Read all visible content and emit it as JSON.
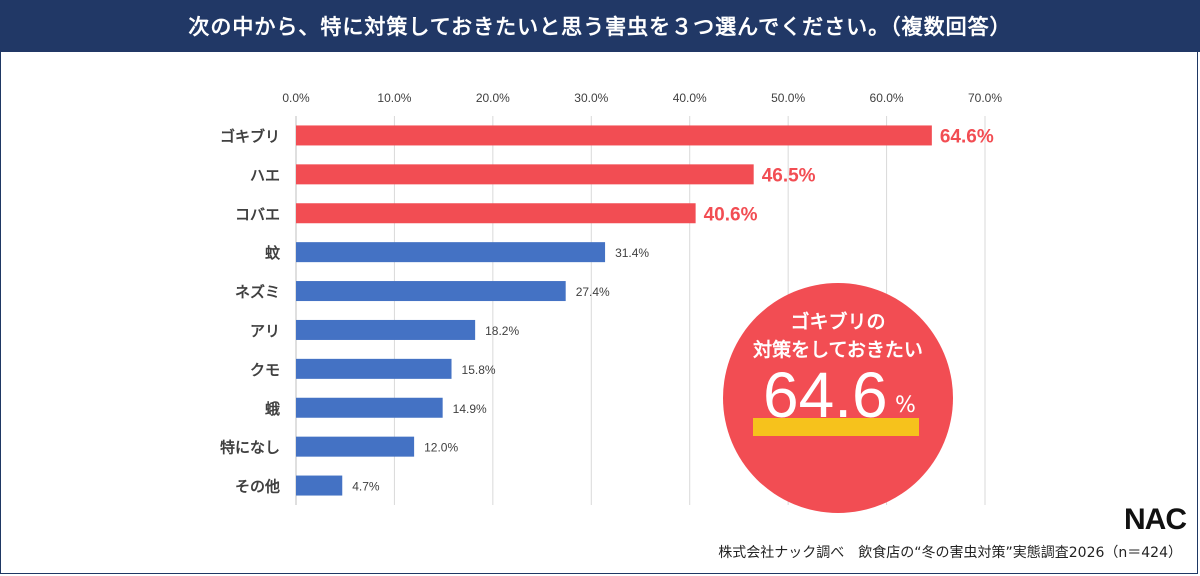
{
  "title": "次の中から、特に対策しておきたいと思う害虫を３つ選んでください。（複数回答）",
  "colors": {
    "header": "#213866",
    "highlight": "#f24d53",
    "normal": "#4472c4",
    "marker": "#f6c21c"
  },
  "chart_data": {
    "type": "bar",
    "orientation": "horizontal",
    "categories": [
      "ゴキブリ",
      "ハエ",
      "コバエ",
      "蚊",
      "ネズミ",
      "アリ",
      "クモ",
      "蛾",
      "特になし",
      "その他"
    ],
    "values": [
      64.6,
      46.5,
      40.6,
      31.4,
      27.4,
      18.2,
      15.8,
      14.9,
      12.0,
      4.7
    ],
    "value_labels": [
      "64.6%",
      "46.5%",
      "40.6%",
      "31.4%",
      "27.4%",
      "18.2%",
      "15.8%",
      "14.9%",
      "12.0%",
      "4.7%"
    ],
    "highlighted": [
      true,
      true,
      true,
      false,
      false,
      false,
      false,
      false,
      false,
      false
    ],
    "xlim": [
      0,
      70
    ],
    "xticks": [
      "0.0%",
      "10.0%",
      "20.0%",
      "30.0%",
      "40.0%",
      "50.0%",
      "60.0%",
      "70.0%"
    ],
    "grid": true
  },
  "callout": {
    "line1": "ゴキブリの",
    "line2": "対策をしておきたい",
    "value": "64.6",
    "unit": "%"
  },
  "logo": "NAC",
  "footer": "株式会社ナック調べ　飲食店の“冬の害虫対策”実態調査2026（n＝424）"
}
